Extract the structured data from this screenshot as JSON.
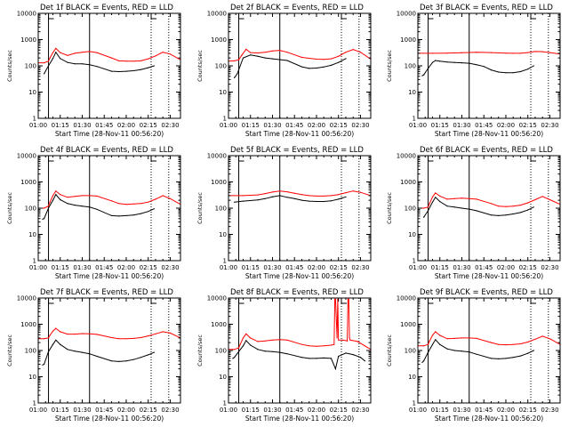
{
  "chart_data": {
    "type": "line",
    "layout": "3x3 grid of small-multiple panels",
    "y_scale": "log",
    "ylim": [
      1,
      10000
    ],
    "y_ticks": [
      "1",
      "10",
      "100",
      "1000",
      "10000"
    ],
    "x_ticks": [
      "01:00",
      "01:15",
      "01:30",
      "01:45",
      "02:00",
      "02:15",
      "02:30"
    ],
    "x_range_minutes": [
      0,
      97
    ],
    "ylabel": "Counts/sec",
    "xlabel": "Start Time (28-Nov-11 00:56:20)",
    "series_colors": {
      "events": "#000000",
      "lld": "#ff0000"
    },
    "markers": {
      "solid_lines": [
        "01:07",
        "01:35"
      ],
      "dotted_lines": [
        "02:17",
        "02:29"
      ],
      "top_markers": [
        "01:07",
        "02:17"
      ]
    },
    "panels": [
      {
        "title": "Det 1f  BLACK = Events, RED = LLD",
        "series": [
          {
            "name": "Events",
            "x": [
              4,
              7,
              10,
              12,
              15,
              20,
              25,
              30,
              35,
              40,
              50,
              55,
              60,
              65,
              70,
              75,
              79
            ],
            "y": [
              50,
              100,
              190,
              330,
              190,
              135,
              120,
              120,
              110,
              95,
              62,
              60,
              62,
              65,
              72,
              85,
              100
            ]
          },
          {
            "name": "LLD",
            "x": [
              0,
              4,
              7,
              8,
              10,
              12,
              15,
              20,
              25,
              30,
              35,
              40,
              50,
              55,
              60,
              65,
              70,
              75,
              80,
              85,
              90,
              97
            ],
            "y": [
              130,
              130,
              150,
              200,
              320,
              460,
              320,
              250,
              300,
              330,
              350,
              320,
              200,
              155,
              150,
              150,
              155,
              185,
              240,
              330,
              280,
              170
            ]
          }
        ]
      },
      {
        "title": "Det 2f  BLACK = Events, RED = LLD",
        "series": [
          {
            "name": "Events",
            "x": [
              4,
              6,
              10,
              15,
              20,
              25,
              30,
              40,
              50,
              55,
              60,
              65,
              70,
              75,
              80
            ],
            "y": [
              35,
              50,
              200,
              260,
              230,
              200,
              185,
              160,
              92,
              80,
              82,
              90,
              105,
              135,
              190
            ]
          },
          {
            "name": "LLD",
            "x": [
              0,
              4,
              7,
              9,
              12,
              15,
              20,
              25,
              30,
              35,
              40,
              50,
              60,
              65,
              70,
              75,
              80,
              85,
              90,
              97
            ],
            "y": [
              150,
              155,
              170,
              250,
              430,
              320,
              310,
              330,
              370,
              390,
              330,
              210,
              180,
              175,
              185,
              230,
              330,
              420,
              330,
              180
            ]
          }
        ]
      },
      {
        "title": "Det 3f  BLACK = Events, RED = LLD",
        "series": [
          {
            "name": "Events",
            "x": [
              3,
              4,
              7,
              10,
              12,
              15,
              20,
              25,
              30,
              35,
              40,
              45,
              50,
              55,
              60,
              65,
              70,
              75,
              79
            ],
            "y": [
              42,
              45,
              80,
              135,
              160,
              150,
              140,
              135,
              130,
              125,
              110,
              95,
              70,
              58,
              55,
              55,
              60,
              75,
              100
            ]
          },
          {
            "name": "LLD",
            "x": [
              0,
              10,
              20,
              30,
              40,
              50,
              60,
              65,
              70,
              75,
              80,
              85,
              90,
              97
            ],
            "y": [
              300,
              300,
              305,
              315,
              330,
              320,
              305,
              300,
              300,
              320,
              350,
              345,
              320,
              280
            ]
          }
        ]
      },
      {
        "title": "Det 4f  BLACK = Events, RED = LLD",
        "series": [
          {
            "name": "Events",
            "x": [
              3,
              4,
              7,
              10,
              12,
              15,
              20,
              25,
              30,
              35,
              40,
              50,
              55,
              60,
              65,
              70,
              75,
              79
            ],
            "y": [
              38,
              40,
              100,
              200,
              330,
              210,
              150,
              130,
              120,
              110,
              90,
              52,
              50,
              52,
              55,
              62,
              75,
              95
            ]
          },
          {
            "name": "LLD",
            "x": [
              0,
              4,
              7,
              8,
              10,
              12,
              15,
              20,
              25,
              30,
              35,
              40,
              50,
              55,
              60,
              65,
              70,
              75,
              80,
              85,
              90,
              97
            ],
            "y": [
              100,
              100,
              120,
              170,
              300,
              450,
              330,
              260,
              280,
              300,
              300,
              290,
              190,
              150,
              140,
              145,
              150,
              170,
              220,
              300,
              230,
              140
            ]
          }
        ]
      },
      {
        "title": "Det 5f  BLACK = Events, RED = LLD",
        "series": [
          {
            "name": "Events",
            "x": [
              4,
              10,
              20,
              25,
              30,
              35,
              40,
              45,
              50,
              55,
              60,
              65,
              70,
              75,
              80
            ],
            "y": [
              170,
              185,
              205,
              230,
              270,
              300,
              260,
              230,
              200,
              185,
              180,
              180,
              190,
              220,
              270
            ]
          },
          {
            "name": "LLD",
            "x": [
              0,
              10,
              20,
              25,
              30,
              35,
              40,
              45,
              50,
              55,
              60,
              65,
              70,
              75,
              80,
              85,
              90,
              97
            ],
            "y": [
              300,
              300,
              320,
              360,
              410,
              450,
              420,
              370,
              330,
              300,
              290,
              290,
              300,
              330,
              390,
              450,
              400,
              300
            ]
          }
        ]
      },
      {
        "title": "Det 6f  BLACK = Events, RED = LLD",
        "series": [
          {
            "name": "Events",
            "x": [
              4,
              7,
              10,
              12,
              15,
              20,
              25,
              30,
              35,
              40,
              50,
              55,
              60,
              65,
              70,
              75,
              79
            ],
            "y": [
              45,
              80,
              170,
              260,
              180,
              120,
              110,
              100,
              92,
              80,
              55,
              52,
              55,
              60,
              68,
              85,
              110
            ]
          },
          {
            "name": "LLD",
            "x": [
              0,
              4,
              7,
              8,
              10,
              12,
              15,
              20,
              25,
              30,
              35,
              40,
              50,
              55,
              60,
              65,
              70,
              75,
              80,
              85,
              90,
              97
            ],
            "y": [
              100,
              100,
              110,
              150,
              270,
              380,
              290,
              220,
              230,
              240,
              230,
              220,
              150,
              120,
              115,
              120,
              130,
              160,
              210,
              280,
              210,
              140
            ]
          }
        ]
      },
      {
        "title": "Det 7f  BLACK = Events, RED = LLD",
        "series": [
          {
            "name": "Events",
            "x": [
              3,
              4,
              7,
              10,
              12,
              15,
              20,
              25,
              30,
              35,
              40,
              50,
              55,
              60,
              65,
              70,
              75,
              79
            ],
            "y": [
              28,
              30,
              90,
              170,
              250,
              170,
              110,
              95,
              85,
              75,
              60,
              40,
              38,
              40,
              45,
              55,
              68,
              85
            ]
          },
          {
            "name": "LLD",
            "x": [
              0,
              4,
              7,
              8,
              10,
              12,
              15,
              20,
              25,
              30,
              35,
              40,
              50,
              55,
              60,
              65,
              70,
              75,
              80,
              85,
              90,
              97
            ],
            "y": [
              280,
              280,
              300,
              380,
              550,
              700,
              520,
              420,
              420,
              440,
              430,
              410,
              310,
              280,
              280,
              290,
              310,
              360,
              430,
              520,
              460,
              300
            ]
          }
        ]
      },
      {
        "title": "Det 8f  BLACK = Events, RED = LLD",
        "series": [
          {
            "name": "Events",
            "x": [
              3,
              4,
              7,
              10,
              12,
              15,
              20,
              25,
              30,
              35,
              40,
              50,
              55,
              60,
              65,
              70,
              73,
              75,
              80,
              85,
              90,
              93
            ],
            "y": [
              50,
              55,
              90,
              150,
              240,
              160,
              110,
              95,
              90,
              85,
              75,
              55,
              50,
              50,
              52,
              50,
              20,
              60,
              80,
              70,
              55,
              40
            ]
          },
          {
            "name": "LLD",
            "x": [
              0,
              4,
              7,
              8,
              10,
              12,
              15,
              20,
              25,
              30,
              35,
              40,
              50,
              55,
              60,
              65,
              70,
              72,
              72.5,
              73,
              74,
              74.5,
              75,
              78,
              81,
              81.5,
              82,
              82.5,
              83,
              88,
              93,
              97
            ],
            "y": [
              110,
              110,
              125,
              170,
              300,
              430,
              300,
              220,
              230,
              250,
              260,
              250,
              170,
              150,
              145,
              150,
              160,
              170,
              9000,
              9000,
              300,
              9000,
              250,
              250,
              230,
              9000,
              9000,
              300,
              250,
              220,
              150,
              110
            ]
          }
        ]
      },
      {
        "title": "Det 9f  BLACK = Events, RED = LLD",
        "series": [
          {
            "name": "Events",
            "x": [
              3,
              4,
              7,
              10,
              12,
              15,
              20,
              25,
              30,
              35,
              40,
              50,
              55,
              60,
              65,
              70,
              75,
              79
            ],
            "y": [
              35,
              40,
              85,
              170,
              260,
              170,
              115,
              100,
              95,
              88,
              72,
              50,
              48,
              50,
              55,
              62,
              78,
              100
            ]
          },
          {
            "name": "LLD",
            "x": [
              0,
              4,
              7,
              8,
              10,
              12,
              15,
              20,
              25,
              30,
              35,
              40,
              50,
              55,
              60,
              65,
              70,
              75,
              80,
              85,
              90,
              97
            ],
            "y": [
              150,
              150,
              170,
              230,
              380,
              520,
              380,
              280,
              290,
              300,
              300,
              290,
              200,
              170,
              165,
              170,
              180,
              210,
              270,
              350,
              280,
              170
            ]
          }
        ]
      }
    ]
  }
}
